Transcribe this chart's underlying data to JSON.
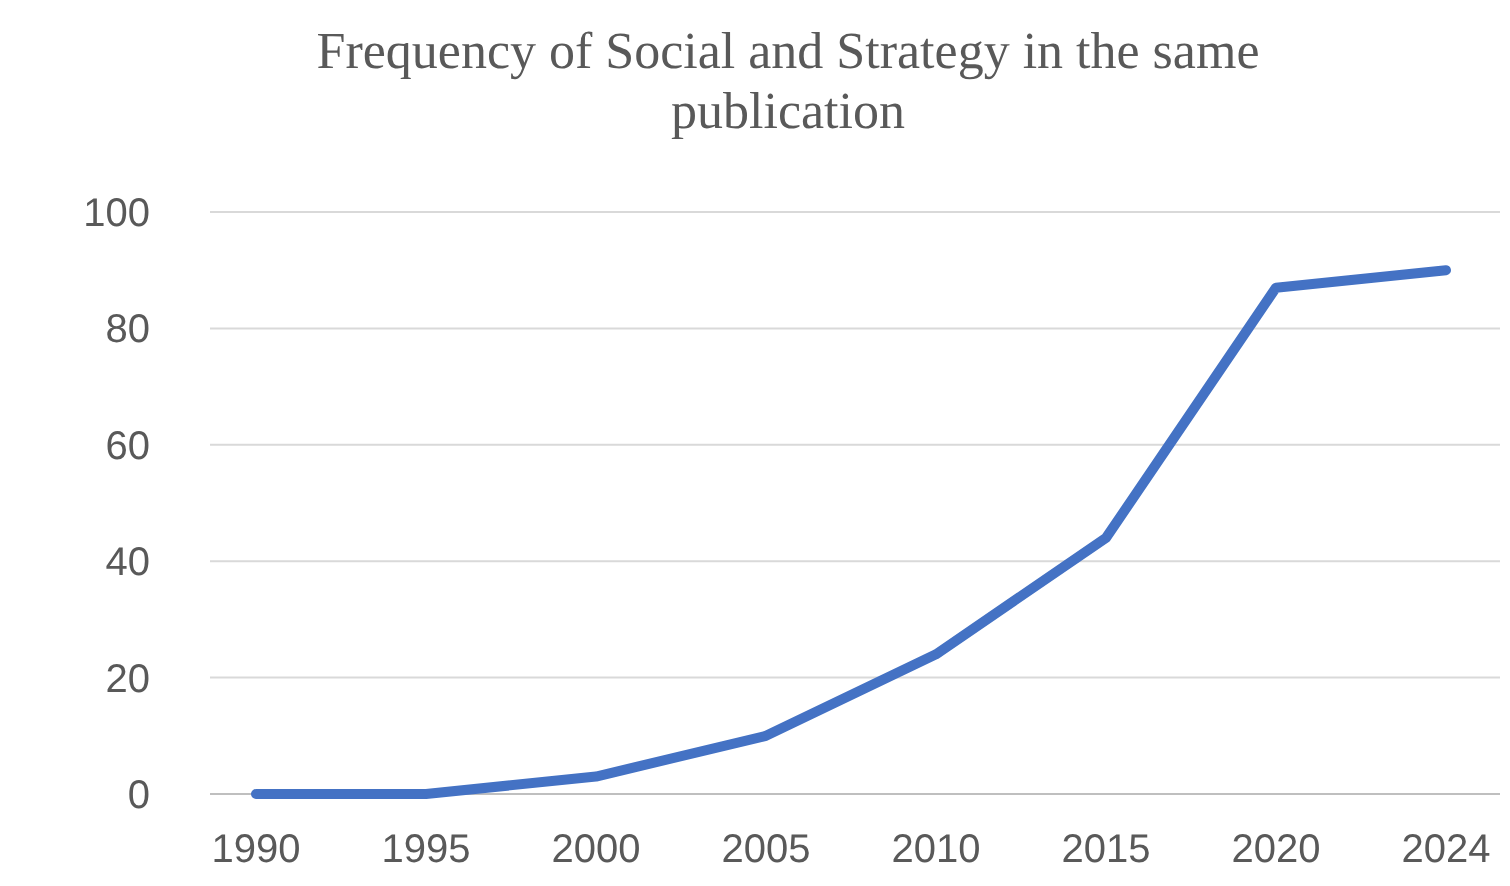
{
  "chart_data": {
    "type": "line",
    "title": "Frequency of Social and Strategy in the same publication",
    "categories": [
      "1990",
      "1995",
      "2000",
      "2005",
      "2010",
      "2015",
      "2020",
      "2024"
    ],
    "series": [
      {
        "color": "#4472c4",
        "values": [
          0,
          0,
          3,
          10,
          24,
          44,
          87,
          90
        ]
      }
    ],
    "ylim": [
      0,
      100
    ],
    "yticks": [
      0,
      20,
      40,
      60,
      80,
      100
    ],
    "grid": "y",
    "marker": "none",
    "line_style": "solid"
  }
}
